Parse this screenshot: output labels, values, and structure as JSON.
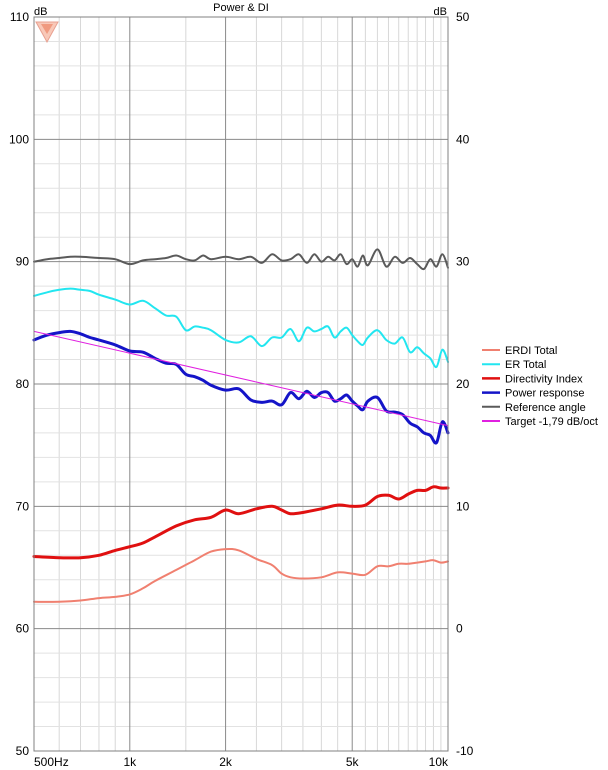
{
  "chart_data": {
    "type": "line",
    "title": "Power & DI",
    "y_left_unit": "dB",
    "y_right_unit": "dB",
    "x_scale": "log",
    "xlim": [
      500,
      10000
    ],
    "ylim_left": [
      50,
      110
    ],
    "ylim_right": [
      -10,
      50
    ],
    "x_ticks": [
      {
        "value": 500,
        "label": "500Hz"
      },
      {
        "value": 1000,
        "label": "1k"
      },
      {
        "value": 2000,
        "label": "2k"
      },
      {
        "value": 5000,
        "label": "5k"
      },
      {
        "value": 10000,
        "label": "10k"
      }
    ],
    "y_left_ticks": [
      "50",
      "60",
      "70",
      "80",
      "90",
      "100",
      "110"
    ],
    "y_right_ticks": [
      "-10",
      "0",
      "10",
      "20",
      "30",
      "40",
      "50"
    ],
    "grid": true,
    "legend_position": "right",
    "series": [
      {
        "name": "ERDI Total",
        "axis": "right",
        "color": "#f08070",
        "width": 2,
        "x": [
          500,
          600,
          700,
          800,
          900,
          1000,
          1100,
          1200,
          1400,
          1600,
          1800,
          2000,
          2200,
          2500,
          2800,
          3000,
          3200,
          3500,
          4000,
          4500,
          5000,
          5500,
          6000,
          6500,
          7000,
          7500,
          8000,
          8500,
          9000,
          9500,
          10000
        ],
        "values": [
          2.2,
          2.2,
          2.3,
          2.5,
          2.6,
          2.8,
          3.3,
          3.9,
          4.8,
          5.6,
          6.3,
          6.5,
          6.4,
          5.7,
          5.2,
          4.5,
          4.2,
          4.1,
          4.2,
          4.6,
          4.5,
          4.4,
          5.1,
          5.1,
          5.3,
          5.3,
          5.4,
          5.5,
          5.6,
          5.4,
          5.5
        ]
      },
      {
        "name": "ER Total",
        "axis": "left",
        "color": "#22e6f0",
        "width": 2,
        "x": [
          500,
          550,
          600,
          650,
          700,
          750,
          800,
          900,
          1000,
          1100,
          1200,
          1300,
          1400,
          1500,
          1600,
          1700,
          1800,
          2000,
          2200,
          2400,
          2600,
          2800,
          3000,
          3200,
          3400,
          3600,
          3800,
          4000,
          4200,
          4400,
          4600,
          4800,
          5000,
          5200,
          5400,
          5600,
          6000,
          6400,
          6800,
          7200,
          7600,
          8000,
          8400,
          8800,
          9200,
          9600,
          10000
        ],
        "values": [
          87.2,
          87.5,
          87.7,
          87.8,
          87.7,
          87.6,
          87.3,
          86.9,
          86.5,
          86.8,
          86.2,
          85.6,
          85.5,
          84.4,
          84.7,
          84.6,
          84.4,
          83.6,
          83.4,
          83.9,
          83.1,
          83.8,
          83.8,
          84.5,
          83.5,
          84.6,
          84.3,
          84.5,
          84.7,
          83.8,
          84.3,
          84.6,
          84.0,
          83.5,
          83.2,
          83.8,
          84.4,
          83.6,
          83.3,
          83.8,
          82.6,
          83.0,
          82.5,
          82.1,
          81.4,
          82.8,
          81.8
        ]
      },
      {
        "name": "Directivity Index",
        "axis": "right",
        "color": "#e01010",
        "width": 3,
        "x": [
          500,
          600,
          700,
          800,
          900,
          1000,
          1100,
          1200,
          1400,
          1600,
          1800,
          2000,
          2200,
          2500,
          2800,
          3000,
          3200,
          3500,
          4000,
          4500,
          5000,
          5500,
          6000,
          6500,
          7000,
          7500,
          8000,
          8500,
          9000,
          9500,
          10000
        ],
        "values": [
          5.9,
          5.8,
          5.8,
          6.0,
          6.4,
          6.7,
          7.0,
          7.5,
          8.4,
          8.9,
          9.1,
          9.7,
          9.4,
          9.8,
          10.0,
          9.7,
          9.4,
          9.5,
          9.8,
          10.1,
          10.0,
          10.1,
          10.8,
          10.9,
          10.6,
          11.0,
          11.3,
          11.3,
          11.6,
          11.5,
          11.5
        ]
      },
      {
        "name": "Power response",
        "axis": "left",
        "color": "#1414c8",
        "width": 3,
        "x": [
          500,
          550,
          600,
          650,
          700,
          750,
          800,
          900,
          1000,
          1100,
          1200,
          1300,
          1400,
          1500,
          1600,
          1700,
          1800,
          2000,
          2200,
          2400,
          2600,
          2800,
          3000,
          3200,
          3400,
          3600,
          3800,
          4000,
          4200,
          4400,
          4600,
          4800,
          5000,
          5200,
          5400,
          5600,
          6000,
          6400,
          6800,
          7200,
          7600,
          8000,
          8400,
          8800,
          9200,
          9600,
          10000
        ],
        "values": [
          83.6,
          84.0,
          84.2,
          84.3,
          84.1,
          83.8,
          83.6,
          83.2,
          82.7,
          82.6,
          82.1,
          81.7,
          81.6,
          80.8,
          80.6,
          80.3,
          79.9,
          79.5,
          79.6,
          78.7,
          78.5,
          78.6,
          78.3,
          79.3,
          78.8,
          79.4,
          78.9,
          79.3,
          79.3,
          78.6,
          78.8,
          79.1,
          78.6,
          78.2,
          77.9,
          78.6,
          78.9,
          77.8,
          77.7,
          77.5,
          76.8,
          76.5,
          76.0,
          75.8,
          75.2,
          76.9,
          76.0
        ]
      },
      {
        "name": "Reference angle",
        "axis": "left",
        "color": "#5a5a5a",
        "width": 2,
        "x": [
          500,
          550,
          600,
          650,
          700,
          800,
          900,
          1000,
          1100,
          1200,
          1300,
          1400,
          1500,
          1600,
          1700,
          1800,
          2000,
          2200,
          2400,
          2600,
          2800,
          3000,
          3200,
          3400,
          3600,
          3800,
          4000,
          4200,
          4400,
          4600,
          4800,
          5000,
          5200,
          5400,
          5600,
          6000,
          6400,
          6800,
          7200,
          7600,
          8000,
          8400,
          8800,
          9200,
          9600,
          10000
        ],
        "values": [
          90.0,
          90.2,
          90.3,
          90.4,
          90.4,
          90.3,
          90.2,
          89.8,
          90.1,
          90.2,
          90.3,
          90.5,
          90.2,
          90.1,
          90.5,
          90.2,
          90.4,
          90.2,
          90.4,
          89.9,
          90.6,
          90.1,
          90.2,
          90.6,
          89.9,
          90.6,
          90.0,
          90.4,
          90.1,
          90.6,
          89.8,
          90.2,
          89.6,
          90.5,
          89.7,
          91.0,
          89.6,
          90.4,
          89.9,
          90.3,
          89.8,
          89.4,
          90.2,
          89.6,
          90.6,
          89.5
        ]
      },
      {
        "name": "Target -1,79 dB/oct",
        "axis": "left",
        "color": "#e020e0",
        "width": 1,
        "x": [
          500,
          10000
        ],
        "values": [
          84.3,
          76.6
        ]
      }
    ]
  }
}
